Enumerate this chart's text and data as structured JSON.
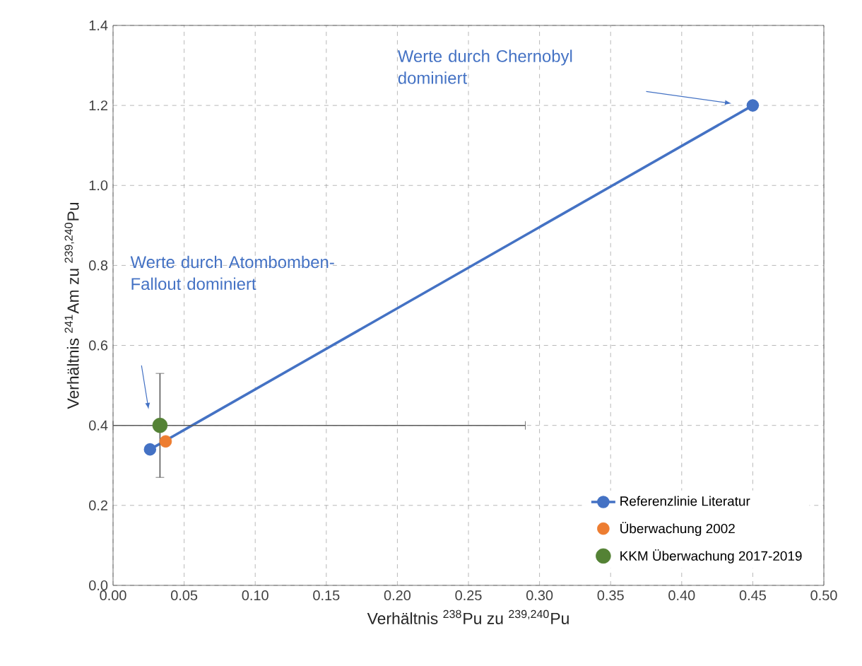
{
  "chart_data": {
    "type": "scatter",
    "xlabel": "Verhältnis $^{238}$Pu zu $^{239,240}$Pu",
    "ylabel": "Verhältnis $^{241}$Am zu $^{239,240}$Pu",
    "xlim": [
      0,
      0.5
    ],
    "xticks": [
      {
        "value": 0,
        "label": "0.00"
      },
      {
        "value": 0.05,
        "label": "0.05"
      },
      {
        "value": 0.1,
        "label": "0.10"
      },
      {
        "value": 0.15,
        "label": "0.15"
      },
      {
        "value": 0.2,
        "label": "0.20"
      },
      {
        "value": 0.25,
        "label": "0.25"
      },
      {
        "value": 0.3,
        "label": "0.30"
      },
      {
        "value": 0.35,
        "label": "0.35"
      },
      {
        "value": 0.4,
        "label": "0.40"
      },
      {
        "value": 0.45,
        "label": "0.45"
      },
      {
        "value": 0.5,
        "label": "0.50"
      }
    ],
    "ylim": [
      0,
      1.4
    ],
    "yticks": [
      {
        "value": 0,
        "label": "0.0"
      },
      {
        "value": 0.2,
        "label": "0.2"
      },
      {
        "value": 0.4,
        "label": "0.4"
      },
      {
        "value": 0.6,
        "label": "0.6"
      },
      {
        "value": 0.8,
        "label": "0.8"
      },
      {
        "value": 1.0,
        "label": "1.0"
      },
      {
        "value": 1.2,
        "label": "1.2"
      },
      {
        "value": 1.4,
        "label": "1.4"
      }
    ],
    "grid": true,
    "legend": "bottom right",
    "marker": "circle",
    "series": [
      {
        "name": "Referenzlinie Literatur",
        "type": "line",
        "color": "#4472c4",
        "x": [
          0.026,
          0.45
        ],
        "values": [
          0.34,
          1.2
        ]
      },
      {
        "name": "Überwachung 2002",
        "color": "#ed7d31",
        "x": [
          0.037
        ],
        "values": [
          0.36
        ]
      },
      {
        "name": "KKM Überwachung 2017-2019",
        "color": "#548235",
        "x": [
          0.033
        ],
        "values": [
          0.4
        ],
        "errors": [
          [
            0.27,
            0.53
          ]
        ],
        "xerrors": [
          [
            0,
            0.29
          ]
        ]
      }
    ],
    "annotations": [
      "Werte durch Chernobyl dominiert",
      "Werte durch Atombomben-Fallout dominiert"
    ]
  }
}
